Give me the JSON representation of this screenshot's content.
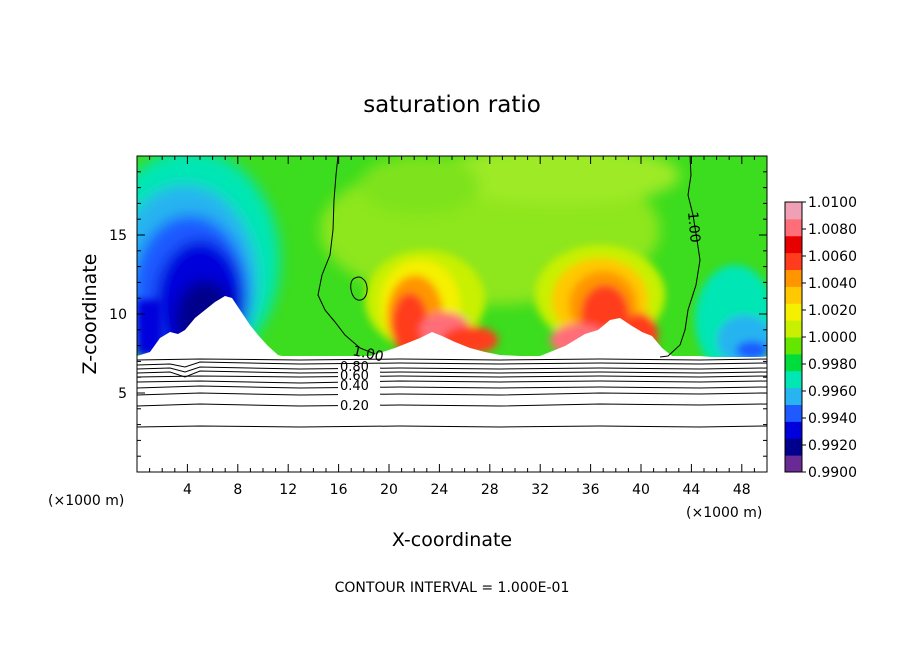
{
  "chart_data": {
    "type": "heatmap",
    "title": "saturation ratio",
    "xlabel": "X-coordinate",
    "ylabel": "Z-coordinate",
    "x_units": "(×1000 m)",
    "xlim": [
      0,
      50
    ],
    "ylim": [
      0,
      20
    ],
    "x_ticks": [
      4,
      8,
      12,
      16,
      20,
      24,
      28,
      32,
      36,
      40,
      44,
      48
    ],
    "y_ticks": [
      5,
      10,
      15
    ],
    "contour_interval_text": "CONTOUR INTERVAL = 1.000E-01",
    "contour_labels": [
      "1.00",
      "1.00",
      "0.80",
      "0.60",
      "0.40",
      "0.20"
    ],
    "colorbar": {
      "min": 0.99,
      "max": 1.01,
      "labels": [
        "1.0100",
        "1.0080",
        "1.0060",
        "1.0040",
        "1.0020",
        "1.0000",
        "0.9980",
        "0.9960",
        "0.9940",
        "0.9920",
        "0.9900"
      ],
      "colors": [
        "#6a2a95",
        "#00008c",
        "#0000dc",
        "#1e5aff",
        "#28b4f0",
        "#00e6b4",
        "#00dc3c",
        "#64e600",
        "#c8f000",
        "#f5f000",
        "#ffc800",
        "#ff9600",
        "#ff3c1e",
        "#e60000",
        "#ff6e78",
        "#f0a0b4"
      ]
    }
  }
}
